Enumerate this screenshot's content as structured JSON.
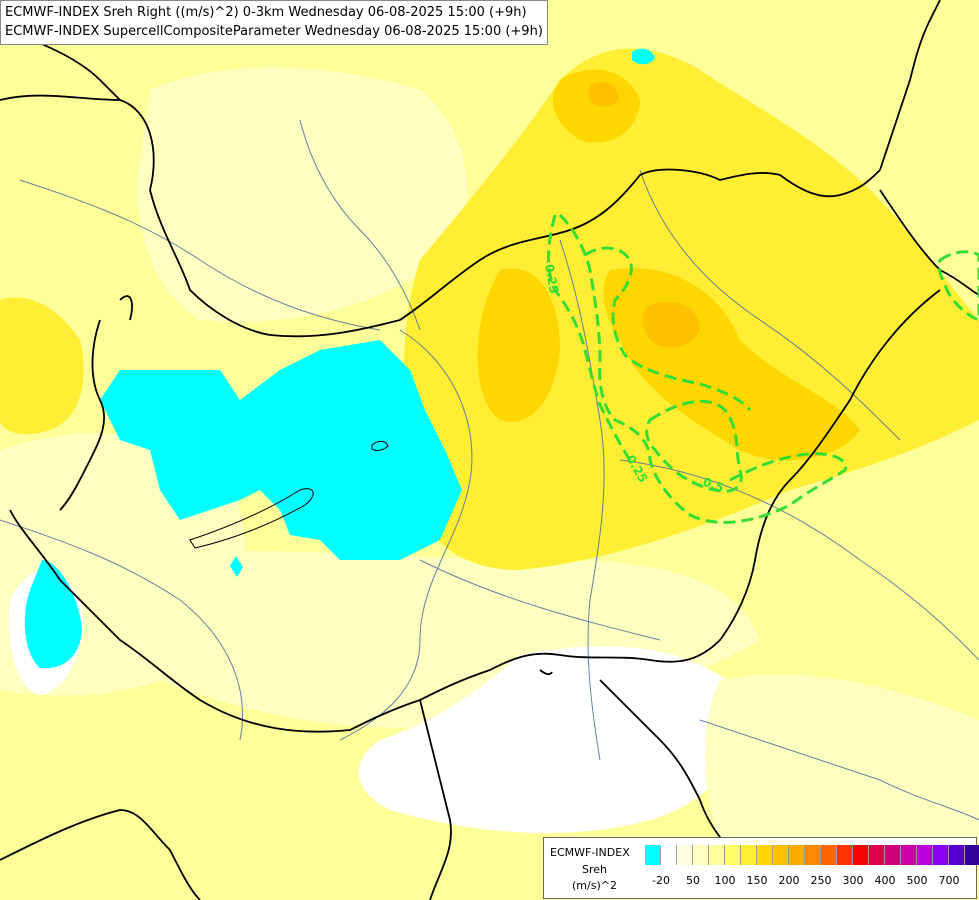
{
  "header": {
    "line1": "ECMWF-INDEX Sreh Right ((m/s)^2) 0-3km Wednesday 06-08-2025 15:00 (+9h)",
    "line2": "ECMWF-INDEX SupercellCompositeParameter Wednesday 06-08-2025 15:00 (+9h)"
  },
  "legend": {
    "title": "ECMWF-INDEX",
    "param": "Sreh",
    "unit": "(m/s)^2",
    "colors": [
      "#00ffff",
      "#ffffff",
      "#ffffe0",
      "#ffffc0",
      "#ffff99",
      "#ffff66",
      "#ffee33",
      "#ffd700",
      "#ffc000",
      "#ffaa00",
      "#ff8800",
      "#ff6600",
      "#ff3300",
      "#ff0000",
      "#e0004a",
      "#cc0077",
      "#cc00aa",
      "#bb00dd",
      "#8800ee",
      "#5500cc",
      "#330099",
      "#000066"
    ],
    "ticks": [
      "-20",
      "50",
      "100",
      "150",
      "200",
      "250",
      "300",
      "400",
      "500",
      "700"
    ]
  },
  "contours": {
    "color": "#33dd33",
    "labels": [
      "0.25",
      "0.25",
      "0.5"
    ]
  }
}
